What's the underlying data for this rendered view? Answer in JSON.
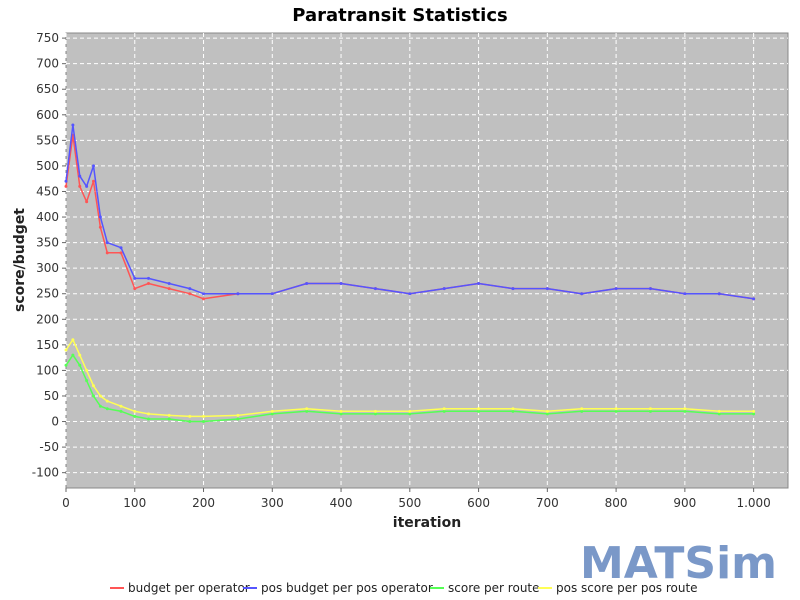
{
  "chart_data": {
    "type": "line",
    "title": "Paratransit Statistics",
    "xlabel": "iteration",
    "ylabel": "score/budget",
    "xlim": [
      0,
      1050
    ],
    "ylim": [
      -130,
      760
    ],
    "x_ticks": [
      "0",
      "100",
      "200",
      "300",
      "400",
      "500",
      "600",
      "700",
      "800",
      "900",
      "1.000"
    ],
    "x_tick_values": [
      0,
      100,
      200,
      300,
      400,
      500,
      600,
      700,
      800,
      900,
      1000
    ],
    "y_ticks": [
      -100,
      -50,
      0,
      50,
      100,
      150,
      200,
      250,
      300,
      350,
      400,
      450,
      500,
      550,
      600,
      650,
      700,
      750
    ],
    "grid": true,
    "legend_position": "bottom",
    "background": "#c0c0c0",
    "series": [
      {
        "name": "budget per operator",
        "color": "#ff5555",
        "x": [
          0,
          10,
          20,
          30,
          40,
          50,
          60,
          80,
          100,
          120,
          150,
          180,
          200,
          250,
          300,
          350,
          400,
          450,
          500,
          550,
          600,
          650,
          700,
          750,
          800,
          850,
          900,
          950,
          1000
        ],
        "y": [
          460,
          560,
          460,
          430,
          470,
          380,
          330,
          330,
          260,
          270,
          260,
          250,
          240,
          250,
          250,
          270,
          270,
          260,
          250,
          260,
          270,
          260,
          260,
          250,
          260,
          260,
          250,
          250,
          240
        ]
      },
      {
        "name": "pos budget per pos operator",
        "color": "#5555ff",
        "x": [
          0,
          10,
          20,
          30,
          40,
          50,
          60,
          80,
          100,
          120,
          150,
          180,
          200,
          250,
          300,
          350,
          400,
          450,
          500,
          550,
          600,
          650,
          700,
          750,
          800,
          850,
          900,
          950,
          1000
        ],
        "y": [
          470,
          580,
          480,
          460,
          500,
          400,
          350,
          340,
          280,
          280,
          270,
          260,
          250,
          250,
          250,
          270,
          270,
          260,
          250,
          260,
          270,
          260,
          260,
          250,
          260,
          260,
          250,
          250,
          240
        ]
      },
      {
        "name": "score per route",
        "color": "#55ff55",
        "x": [
          0,
          10,
          20,
          30,
          40,
          50,
          60,
          80,
          100,
          120,
          150,
          180,
          200,
          250,
          300,
          350,
          400,
          450,
          500,
          550,
          600,
          650,
          700,
          750,
          800,
          850,
          900,
          950,
          1000
        ],
        "y": [
          110,
          130,
          110,
          80,
          50,
          30,
          25,
          20,
          10,
          5,
          5,
          0,
          0,
          5,
          15,
          20,
          15,
          15,
          15,
          20,
          20,
          20,
          15,
          20,
          20,
          20,
          20,
          15,
          15
        ]
      },
      {
        "name": "pos score per pos route",
        "color": "#ffff55",
        "x": [
          0,
          10,
          20,
          30,
          40,
          50,
          60,
          80,
          100,
          120,
          150,
          180,
          200,
          250,
          300,
          350,
          400,
          450,
          500,
          550,
          600,
          650,
          700,
          750,
          800,
          850,
          900,
          950,
          1000
        ],
        "y": [
          140,
          160,
          130,
          100,
          70,
          50,
          40,
          30,
          20,
          15,
          12,
          10,
          10,
          12,
          20,
          25,
          20,
          20,
          20,
          25,
          25,
          25,
          20,
          25,
          25,
          25,
          25,
          20,
          20
        ]
      }
    ]
  },
  "logo": {
    "text": "MATSim",
    "color": "#7a98c8"
  }
}
